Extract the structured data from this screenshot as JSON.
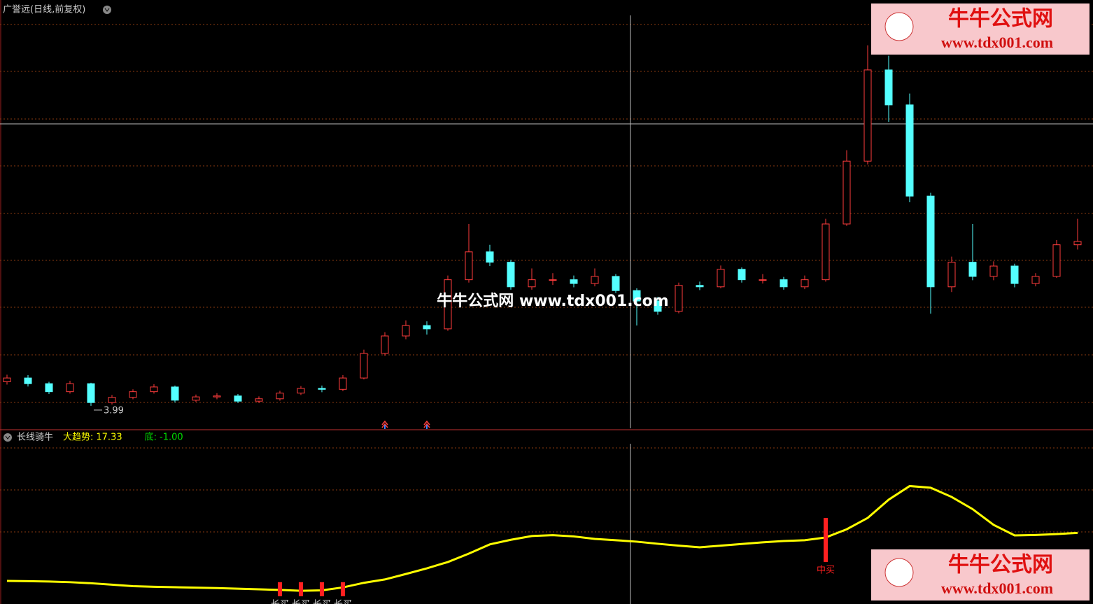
{
  "chart_data": [
    {
      "type": "candlestick",
      "title": "广誉远(日线,前复权)",
      "open": [
        4.5,
        4.58,
        4.46,
        4.29,
        4.46,
        4.06,
        4.17,
        4.29,
        4.39,
        4.11,
        4.18,
        4.2,
        4.09,
        4.14,
        4.26,
        4.36,
        4.34,
        4.58,
        5.1,
        5.47,
        5.69,
        5.62,
        6.66,
        7.25,
        7.03,
        6.51,
        6.66,
        6.66,
        6.58,
        6.73,
        6.43,
        6.21,
        5.99,
        6.54,
        6.51,
        6.88,
        6.66,
        6.66,
        6.51,
        6.66,
        7.84,
        9.17,
        11.1,
        10.36,
        8.43,
        6.51,
        7.03,
        6.73,
        6.95,
        6.58,
        6.73,
        7.4
      ],
      "close": [
        4.58,
        4.46,
        4.29,
        4.46,
        4.06,
        4.17,
        4.29,
        4.39,
        4.11,
        4.18,
        4.2,
        4.09,
        4.14,
        4.26,
        4.36,
        4.34,
        4.58,
        5.1,
        5.47,
        5.69,
        5.62,
        6.66,
        7.25,
        7.03,
        6.51,
        6.66,
        6.66,
        6.58,
        6.73,
        6.43,
        6.21,
        5.99,
        6.54,
        6.51,
        6.88,
        6.66,
        6.66,
        6.51,
        6.66,
        7.84,
        9.17,
        11.1,
        10.36,
        8.43,
        6.51,
        7.03,
        6.73,
        6.95,
        6.58,
        6.73,
        7.4,
        7.47
      ],
      "high": [
        4.65,
        4.64,
        4.5,
        4.52,
        4.48,
        4.22,
        4.34,
        4.45,
        4.42,
        4.23,
        4.26,
        4.24,
        4.19,
        4.31,
        4.41,
        4.42,
        4.64,
        5.18,
        5.55,
        5.8,
        5.78,
        6.75,
        7.84,
        7.4,
        7.08,
        6.9,
        6.8,
        6.75,
        6.9,
        6.78,
        6.48,
        6.3,
        6.6,
        6.62,
        6.96,
        6.92,
        6.78,
        6.72,
        6.75,
        7.95,
        9.4,
        11.62,
        11.4,
        10.6,
        8.5,
        7.15,
        7.84,
        7.05,
        7.0,
        6.8,
        7.5,
        7.95
      ],
      "low": [
        4.44,
        4.4,
        4.24,
        4.25,
        3.99,
        4.02,
        4.13,
        4.25,
        4.06,
        4.07,
        4.13,
        4.05,
        4.05,
        4.1,
        4.22,
        4.28,
        4.3,
        4.55,
        5.05,
        5.4,
        5.5,
        5.58,
        6.6,
        6.95,
        6.45,
        6.45,
        6.55,
        6.5,
        6.52,
        6.38,
        5.69,
        5.92,
        5.95,
        6.44,
        6.48,
        6.6,
        6.58,
        6.45,
        6.46,
        6.62,
        7.8,
        9.1,
        10.0,
        8.3,
        5.94,
        6.4,
        6.65,
        6.65,
        6.5,
        6.52,
        6.7,
        7.3
      ],
      "up_color": "#ff3c3c",
      "down_color": "#54ffff",
      "ylim": [
        3.5,
        12.58
      ],
      "annotation": {
        "index": 4,
        "value": 3.99
      },
      "markers": [
        18,
        20
      ],
      "watermark": "牛牛公式网  www.tdx001.com"
    },
    {
      "type": "line",
      "title": "长线骑牛",
      "values": [
        -1.7,
        -1.8,
        -2.0,
        -2.3,
        -2.8,
        -3.5,
        -4.2,
        -4.5,
        -4.7,
        -4.9,
        -5.1,
        -5.4,
        -5.7,
        -6.0,
        -6.4,
        -6.2,
        -4.8,
        -2.6,
        -1.0,
        1.6,
        4.3,
        7.3,
        11.3,
        15.7,
        17.9,
        19.7,
        20.1,
        19.5,
        18.3,
        17.7,
        17.0,
        16.0,
        15.1,
        14.3,
        15.1,
        15.9,
        16.7,
        17.3,
        17.7,
        19.0,
        22.9,
        28.3,
        37.0,
        43.5,
        42.7,
        38.3,
        32.5,
        25.0,
        20.0,
        20.2,
        20.6,
        21.2
      ],
      "color": "#ffff00",
      "ylim": [
        -12.7,
        70
      ],
      "readouts": [
        {
          "name": "大趋势:",
          "value": 17.33,
          "color": "#ffff00"
        },
        {
          "name": "底:",
          "value": -1,
          "value_label": "-1.00",
          "color": "#00e000"
        }
      ],
      "signals": [
        {
          "index": 13,
          "label": "长买",
          "high": -2.3,
          "low": -9.0
        },
        {
          "index": 14,
          "label": "长买",
          "high": -2.3,
          "low": -9.0
        },
        {
          "index": 15,
          "label": "长买",
          "high": -2.3,
          "low": -9.0
        },
        {
          "index": 16,
          "label": "长买",
          "high": -2.3,
          "low": -9.0
        },
        {
          "index": 39,
          "label": "中买",
          "high": 28.33,
          "low": 7.33
        }
      ],
      "signal_color": "#ff2020"
    }
  ],
  "logo": {
    "name": "牛牛公式网",
    "url": "www.tdx001.com"
  }
}
